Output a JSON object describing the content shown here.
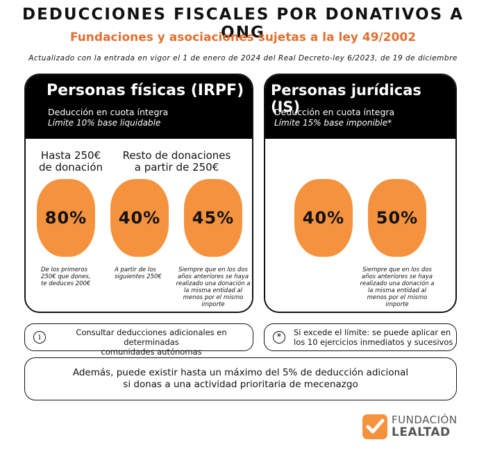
{
  "header": {
    "title": "DEDUCCIONES FISCALES POR DONATIVOS A ONG",
    "subtitle": "Fundaciones y asociaciones sujetas a la ley 49/2002",
    "updated": "Actualizado con la entrada en vigor el 1 de enero de 2024 del Real Decreto-ley 6/2023, de 19 de diciembre"
  },
  "colors": {
    "accent": "#e07030",
    "blob": "#f5923e",
    "panel_head": "#000000"
  },
  "irpf": {
    "title": "Personas físicas (IRPF)",
    "line1": "Deducción en cuota íntegra",
    "line2": "Límite 10% base liquidable",
    "col1_label_a": "Hasta 250€",
    "col1_label_b": "de donación",
    "col2_label_a": "Resto de donaciones",
    "col2_label_b": "a partir de 250€",
    "pct1": "80%",
    "pct2": "40%",
    "pct3": "45%",
    "note1": [
      "De los primeros",
      "250€ que dones,",
      "te deduces 200€"
    ],
    "note2": [
      "A partir de los",
      "siguientes 250€"
    ],
    "note3": [
      "Siempre que en los dos",
      "años anteriores se haya",
      "realizado una donación a",
      "la misma entidad al",
      "menos por el mismo",
      "importe"
    ]
  },
  "is": {
    "title": "Personas jurídicas (IS)",
    "line1": "Deducción en cuota íntegra",
    "line2": "Límite 15% base imponible*",
    "pct1": "40%",
    "pct2": "50%",
    "note2": [
      "Siempre que en los dos",
      "años anteriores se haya",
      "realizado una donación a",
      "la misma entidad al",
      "menos por el mismo",
      "importe"
    ]
  },
  "info_left": {
    "icon": "info-icon",
    "glyph": "i",
    "line1": "Consultar deducciones adicionales en determinadas",
    "line2": "comunidades autónomas"
  },
  "info_right": {
    "icon": "asterisk-icon",
    "glyph": "*",
    "line1": "Si excede el límite: se puede aplicar en",
    "line2": "los 10 ejercicios inmediatos y sucesivos"
  },
  "bottom": {
    "line1": "Además, puede existir hasta un máximo del 5% de deducción adicional",
    "line2": "si donas a una actividad prioritaria de mecenazgo"
  },
  "logo": {
    "icon": "checkmark-logo-icon",
    "line1": "FUNDACIÓN",
    "line2": "LEALTAD"
  }
}
